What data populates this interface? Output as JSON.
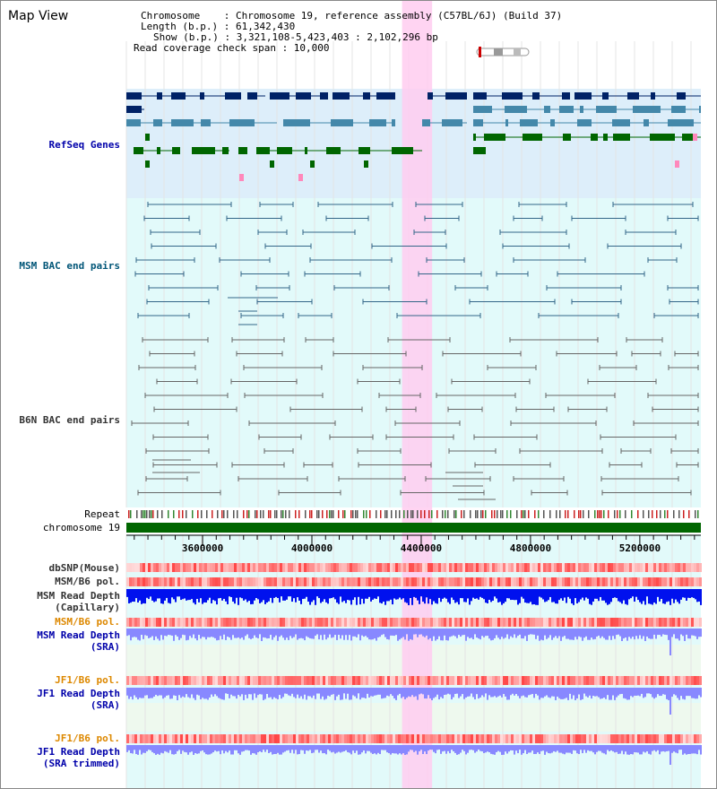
{
  "view_title": "Map View",
  "info": {
    "chromosome": "Chromosome    : Chromosome 19, reference assembly (C57BL/6J) (Build 37)",
    "length": "Length (b.p.) : 61,342,430",
    "show": "Show (b.p.) : 3,321,108-5,423,403 : 2,102,296 bp",
    "coverage": "Read coverage check span : 10,000"
  },
  "tracks": {
    "refseq": {
      "label": "RefSeq Genes",
      "color": "#0000aa"
    },
    "msm_bac": {
      "label": "MSM BAC end pairs",
      "color": "#005577"
    },
    "b6n_bac": {
      "label": "B6N BAC end pairs",
      "color": "#333333"
    },
    "repeat": {
      "label": "Repeat"
    },
    "chromosome": {
      "label": "chromosome 19"
    },
    "dbsnp": {
      "label": "dbSNP(Mouse)"
    },
    "msm_b6_pol_1": {
      "label": "MSM/B6 pol."
    },
    "msm_depth_cap": {
      "label": "MSM Read Depth\n(Capillary)"
    },
    "msm_b6_pol_2": {
      "label": "MSM/B6 pol.",
      "color": "#dd8800"
    },
    "msm_depth_sra": {
      "label": "MSM Read Depth\n(SRA)",
      "color": "#0000aa"
    },
    "jf1_b6_pol_1": {
      "label": "JF1/B6 pol.",
      "color": "#dd8800"
    },
    "jf1_depth_sra": {
      "label": "JF1 Read Depth\n(SRA)",
      "color": "#0000aa"
    },
    "jf1_b6_pol_2": {
      "label": "JF1/B6 pol.",
      "color": "#dd8800"
    },
    "jf1_depth_trim": {
      "label": "JF1 Read Depth\n(SRA trimmed)",
      "color": "#0000aa"
    }
  },
  "axis": {
    "range_bp": [
      3321108,
      5423403
    ],
    "tick_labels": [
      "3600000",
      "4000000",
      "4400000",
      "4800000",
      "5200000"
    ]
  },
  "highlight": {
    "start_bp": 4330000,
    "end_bp": 4440000,
    "color": "#ffccf0"
  },
  "colors": {
    "refseq_bg": "#ddeefa",
    "bac_bg": "#e2fafa",
    "refseq_dark": "#002266",
    "refseq_mid": "#4488aa",
    "refseq_green": "#006600",
    "msm_line": "#336688",
    "b6n_line": "#666666",
    "chromosome_bar": "#006600",
    "depth_capillary": "#0011ee",
    "depth_sra": "#8888ff"
  }
}
